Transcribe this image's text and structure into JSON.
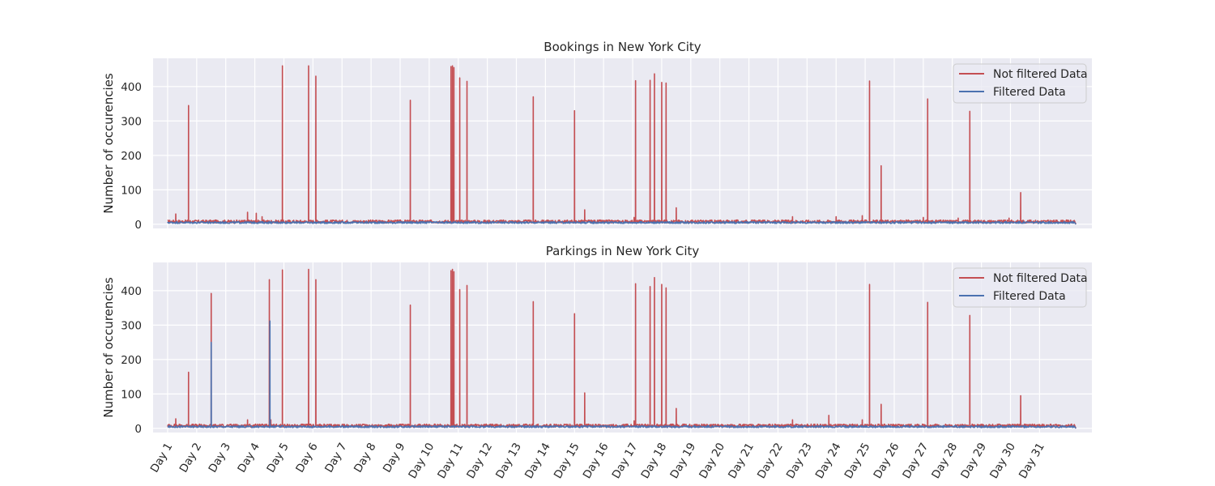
{
  "colors": {
    "not_filtered": "#c44e52",
    "filtered": "#4c72b0",
    "axes_bg": "#eaeaf2",
    "grid": "#ffffff",
    "text": "#262626"
  },
  "chart_data": [
    {
      "type": "line",
      "title": "Bookings in New York City",
      "xlabel": "",
      "ylabel": "Number of occurencies",
      "xlim": [
        -0.5,
        31.8
      ],
      "ylim": [
        -12,
        482
      ],
      "yticks": [
        0,
        100,
        200,
        300,
        400
      ],
      "ytick_labels": [
        "0",
        "100",
        "200",
        "300",
        "400"
      ],
      "grid": true,
      "legend": {
        "placement": "top-right",
        "entries": [
          "Not filtered Data",
          "Filtered Data"
        ]
      },
      "series": [
        {
          "name": "Not filtered Data",
          "color": "#c44e52",
          "baseline": 8,
          "spikes": [
            [
              0.28,
              30
            ],
            [
              0.72,
              345
            ],
            [
              2.75,
              35
            ],
            [
              3.05,
              32
            ],
            [
              3.25,
              22
            ],
            [
              3.95,
              460
            ],
            [
              4.85,
              460
            ],
            [
              5.1,
              430
            ],
            [
              8.35,
              360
            ],
            [
              9.75,
              458
            ],
            [
              9.8,
              460
            ],
            [
              9.85,
              455
            ],
            [
              10.05,
              425
            ],
            [
              10.3,
              415
            ],
            [
              12.58,
              370
            ],
            [
              14.0,
              330
            ],
            [
              14.35,
              42
            ],
            [
              16.05,
              20
            ],
            [
              16.1,
              417
            ],
            [
              16.6,
              418
            ],
            [
              16.75,
              437
            ],
            [
              17.0,
              412
            ],
            [
              17.15,
              410
            ],
            [
              17.5,
              48
            ],
            [
              21.5,
              22
            ],
            [
              23.0,
              22
            ],
            [
              23.9,
              25
            ],
            [
              24.15,
              416
            ],
            [
              24.55,
              170
            ],
            [
              26.0,
              20
            ],
            [
              26.15,
              364
            ],
            [
              27.2,
              18
            ],
            [
              27.6,
              328
            ],
            [
              28.95,
              18
            ],
            [
              29.35,
              92
            ]
          ]
        },
        {
          "name": "Filtered Data",
          "color": "#4c72b0",
          "baseline": 5,
          "spikes": []
        }
      ]
    },
    {
      "type": "line",
      "title": "Parkings in New York City",
      "xlabel": "",
      "ylabel": "Number of occurencies",
      "xlim": [
        -0.5,
        31.8
      ],
      "ylim": [
        -12,
        482
      ],
      "yticks": [
        0,
        100,
        200,
        300,
        400
      ],
      "ytick_labels": [
        "0",
        "100",
        "200",
        "300",
        "400"
      ],
      "grid": true,
      "legend": {
        "placement": "top-right",
        "entries": [
          "Not filtered Data",
          "Filtered Data"
        ]
      },
      "x_tick_labels": [
        "Day 1",
        "Day 2",
        "Day 3",
        "Day 4",
        "Day 5",
        "Day 6",
        "Day 7",
        "Day 8",
        "Day 9",
        "Day 10",
        "Day 11",
        "Day 12",
        "Day 13",
        "Day 14",
        "Day 15",
        "Day 16",
        "Day 17",
        "Day 18",
        "Day 19",
        "Day 20",
        "Day 21",
        "Day 22",
        "Day 23",
        "Day 24",
        "Day 25",
        "Day 26",
        "Day 27",
        "Day 28",
        "Day 29",
        "Day 30",
        "Day 31"
      ],
      "series": [
        {
          "name": "Not filtered Data",
          "color": "#c44e52",
          "baseline": 8,
          "spikes": [
            [
              0.28,
              28
            ],
            [
              0.72,
              163
            ],
            [
              1.5,
              392
            ],
            [
              2.75,
              25
            ],
            [
              3.5,
              432
            ],
            [
              3.55,
              25
            ],
            [
              3.95,
              460
            ],
            [
              4.85,
              462
            ],
            [
              5.1,
              432
            ],
            [
              8.35,
              358
            ],
            [
              9.75,
              458
            ],
            [
              9.8,
              462
            ],
            [
              9.85,
              455
            ],
            [
              10.05,
              403
            ],
            [
              10.3,
              415
            ],
            [
              12.58,
              368
            ],
            [
              14.0,
              333
            ],
            [
              14.35,
              103
            ],
            [
              16.05,
              22
            ],
            [
              16.1,
              420
            ],
            [
              16.6,
              412
            ],
            [
              16.75,
              438
            ],
            [
              17.0,
              418
            ],
            [
              17.15,
              408
            ],
            [
              17.5,
              58
            ],
            [
              21.5,
              25
            ],
            [
              22.75,
              38
            ],
            [
              23.9,
              25
            ],
            [
              24.15,
              418
            ],
            [
              24.55,
              70
            ],
            [
              26.15,
              366
            ],
            [
              27.6,
              328
            ],
            [
              29.35,
              95
            ]
          ]
        },
        {
          "name": "Filtered Data",
          "color": "#4c72b0",
          "baseline": 5,
          "spikes": [
            [
              1.5,
              250
            ],
            [
              3.52,
              312
            ]
          ]
        }
      ]
    }
  ]
}
